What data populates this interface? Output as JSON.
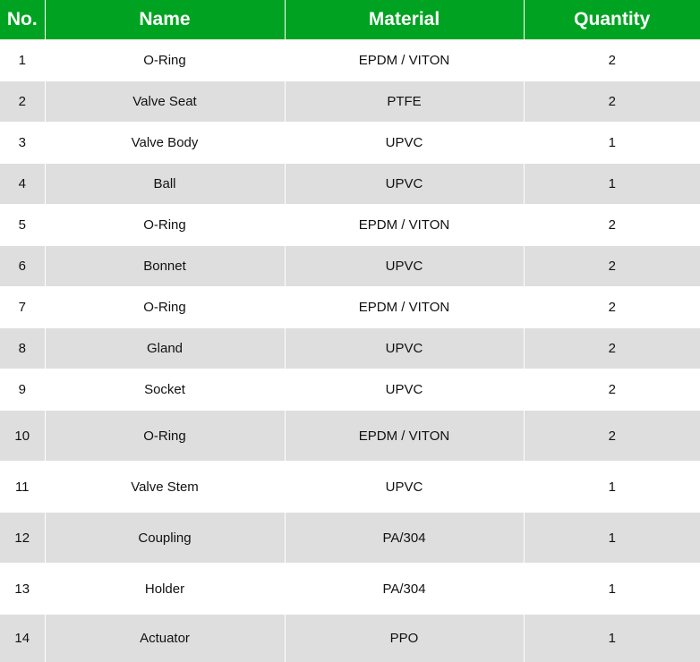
{
  "colors": {
    "header_bg": "#00a321",
    "header_text": "#ffffff",
    "stripe": "#dedede"
  },
  "headers": [
    "No.",
    "Name",
    "Material",
    "Quantity"
  ],
  "rows": [
    [
      "1",
      "O-Ring",
      "EPDM / VITON",
      "2"
    ],
    [
      "2",
      "Valve Seat",
      "PTFE",
      "2"
    ],
    [
      "3",
      "Valve Body",
      "UPVC",
      "1"
    ],
    [
      "4",
      "Ball",
      "UPVC",
      "1"
    ],
    [
      "5",
      "O-Ring",
      "EPDM / VITON",
      "2"
    ],
    [
      "6",
      "Bonnet",
      "UPVC",
      "2"
    ],
    [
      "7",
      "O-Ring",
      "EPDM / VITON",
      "2"
    ],
    [
      "8",
      "Gland",
      "UPVC",
      "2"
    ],
    [
      "9",
      "Socket",
      "UPVC",
      "2"
    ],
    [
      "10",
      "O-Ring",
      "EPDM / VITON",
      "2"
    ],
    [
      "11",
      "Valve Stem",
      "UPVC",
      "1"
    ],
    [
      "12",
      "Coupling",
      "PA/304",
      "1"
    ],
    [
      "13",
      "Holder",
      "PA/304",
      "1"
    ],
    [
      "14",
      "Actuator",
      "PPO",
      "1"
    ]
  ]
}
